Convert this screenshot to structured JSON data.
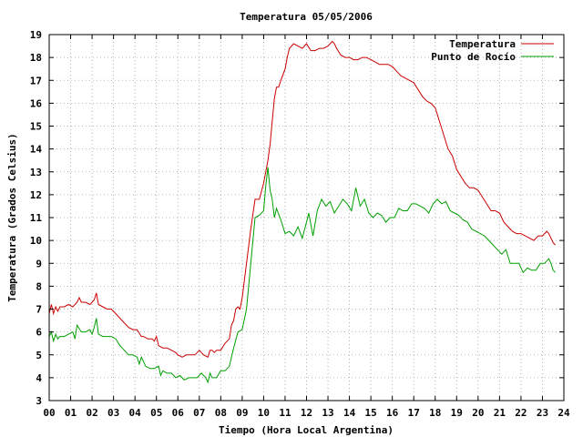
{
  "chart_data": {
    "type": "line",
    "title": "Temperatura 05/05/2006",
    "xlabel": "Tiempo (Hora Local Argentina)",
    "ylabel": "Temperatura (Grados Celsius)",
    "xlim": [
      0,
      24
    ],
    "ylim": [
      3,
      19
    ],
    "x_ticks": [
      "00",
      "01",
      "02",
      "03",
      "04",
      "05",
      "06",
      "07",
      "08",
      "09",
      "10",
      "11",
      "12",
      "13",
      "14",
      "15",
      "16",
      "17",
      "18",
      "19",
      "20",
      "21",
      "22",
      "23",
      "24"
    ],
    "y_ticks": [
      "3",
      "4",
      "5",
      "6",
      "7",
      "8",
      "9",
      "10",
      "11",
      "12",
      "13",
      "14",
      "15",
      "16",
      "17",
      "18",
      "19"
    ],
    "grid": true,
    "legend_position": "top-right",
    "series": [
      {
        "name": "Temperatura",
        "color": "#cc0000",
        "x": [
          0,
          0.1,
          0.2,
          0.3,
          0.4,
          0.5,
          0.7,
          0.9,
          1.1,
          1.3,
          1.4,
          1.5,
          1.7,
          1.9,
          2.0,
          2.1,
          2.2,
          2.3,
          2.5,
          2.7,
          2.9,
          3.1,
          3.3,
          3.5,
          3.7,
          3.9,
          4.1,
          4.3,
          4.4,
          4.6,
          4.8,
          4.9,
          5.0,
          5.1,
          5.3,
          5.5,
          5.7,
          5.9,
          6.0,
          6.2,
          6.4,
          6.6,
          6.8,
          7.0,
          7.2,
          7.4,
          7.5,
          7.6,
          7.7,
          7.8,
          8.0,
          8.2,
          8.4,
          8.5,
          8.6,
          8.7,
          8.8,
          8.9,
          9.0,
          9.2,
          9.4,
          9.6,
          9.8,
          10.0,
          10.2,
          10.3,
          10.4,
          10.5,
          10.6,
          10.7,
          10.8,
          11.0,
          11.1,
          11.2,
          11.4,
          11.6,
          11.8,
          12.0,
          12.2,
          12.4,
          12.6,
          12.8,
          13.0,
          13.2,
          13.3,
          13.4,
          13.6,
          13.8,
          14.0,
          14.2,
          14.4,
          14.6,
          14.8,
          15.0,
          15.2,
          15.4,
          15.6,
          15.8,
          16.0,
          16.2,
          16.4,
          16.6,
          16.8,
          17.0,
          17.2,
          17.4,
          17.6,
          17.8,
          18.0,
          18.2,
          18.4,
          18.6,
          18.8,
          19.0,
          19.2,
          19.4,
          19.6,
          19.8,
          20.0,
          20.2,
          20.4,
          20.6,
          20.8,
          21.0,
          21.2,
          21.4,
          21.6,
          21.8,
          22.0,
          22.2,
          22.4,
          22.6,
          22.8,
          23.0,
          23.2,
          23.3,
          23.4,
          23.5,
          23.6
        ],
        "values": [
          6.8,
          7.2,
          6.8,
          7.1,
          6.9,
          7.1,
          7.1,
          7.2,
          7.1,
          7.3,
          7.5,
          7.3,
          7.3,
          7.2,
          7.3,
          7.4,
          7.7,
          7.2,
          7.1,
          7.0,
          7.0,
          6.8,
          6.6,
          6.4,
          6.2,
          6.1,
          6.1,
          5.8,
          5.8,
          5.7,
          5.7,
          5.6,
          5.8,
          5.4,
          5.3,
          5.3,
          5.2,
          5.1,
          5.0,
          4.9,
          5.0,
          5.0,
          5.0,
          5.2,
          5.0,
          4.9,
          5.2,
          5.2,
          5.1,
          5.2,
          5.2,
          5.5,
          5.7,
          6.3,
          6.5,
          7.0,
          7.1,
          7.0,
          7.5,
          9.0,
          10.5,
          11.8,
          11.8,
          12.5,
          13.5,
          14.2,
          15.2,
          16.2,
          16.7,
          16.7,
          17.0,
          17.5,
          18.0,
          18.4,
          18.6,
          18.5,
          18.4,
          18.6,
          18.3,
          18.3,
          18.4,
          18.4,
          18.5,
          18.7,
          18.6,
          18.4,
          18.1,
          18.0,
          18.0,
          17.9,
          17.9,
          18.0,
          18.0,
          17.9,
          17.8,
          17.7,
          17.7,
          17.7,
          17.6,
          17.4,
          17.2,
          17.1,
          17.0,
          16.9,
          16.6,
          16.3,
          16.1,
          16.0,
          15.8,
          15.2,
          14.6,
          14.0,
          13.7,
          13.1,
          12.8,
          12.5,
          12.3,
          12.3,
          12.2,
          11.9,
          11.6,
          11.3,
          11.3,
          11.2,
          10.8,
          10.6,
          10.4,
          10.3,
          10.3,
          10.2,
          10.1,
          10.0,
          10.2,
          10.2,
          10.4,
          10.3,
          10.1,
          9.9,
          9.8
        ]
      },
      {
        "name": "Punto de Rocío",
        "color": "#00a000",
        "x": [
          0,
          0.1,
          0.2,
          0.3,
          0.4,
          0.5,
          0.7,
          0.9,
          1.1,
          1.2,
          1.3,
          1.5,
          1.7,
          1.9,
          2.0,
          2.1,
          2.2,
          2.3,
          2.5,
          2.7,
          2.9,
          3.1,
          3.3,
          3.5,
          3.7,
          3.9,
          4.1,
          4.2,
          4.3,
          4.5,
          4.7,
          4.9,
          5.1,
          5.2,
          5.3,
          5.5,
          5.7,
          5.9,
          6.1,
          6.3,
          6.5,
          6.7,
          6.9,
          7.1,
          7.3,
          7.4,
          7.5,
          7.6,
          7.8,
          8.0,
          8.2,
          8.4,
          8.5,
          8.6,
          8.8,
          9.0,
          9.2,
          9.4,
          9.6,
          9.8,
          10.0,
          10.1,
          10.2,
          10.3,
          10.4,
          10.5,
          10.6,
          10.8,
          11.0,
          11.2,
          11.4,
          11.6,
          11.8,
          12.0,
          12.1,
          12.3,
          12.5,
          12.7,
          12.9,
          13.1,
          13.3,
          13.5,
          13.7,
          13.9,
          14.1,
          14.3,
          14.5,
          14.7,
          14.9,
          15.1,
          15.3,
          15.5,
          15.7,
          15.9,
          16.1,
          16.3,
          16.5,
          16.7,
          16.9,
          17.1,
          17.3,
          17.5,
          17.7,
          17.9,
          18.1,
          18.3,
          18.5,
          18.7,
          18.9,
          19.1,
          19.3,
          19.5,
          19.7,
          19.9,
          20.1,
          20.3,
          20.5,
          20.7,
          20.9,
          21.1,
          21.3,
          21.5,
          21.7,
          21.9,
          22.1,
          22.3,
          22.5,
          22.7,
          22.9,
          23.1,
          23.3,
          23.4,
          23.5,
          23.6
        ],
        "values": [
          5.8,
          6.0,
          5.6,
          5.9,
          5.7,
          5.8,
          5.8,
          5.9,
          6.0,
          5.7,
          6.3,
          6.0,
          6.0,
          6.1,
          5.9,
          6.2,
          6.6,
          5.9,
          5.8,
          5.8,
          5.8,
          5.7,
          5.4,
          5.2,
          5.0,
          5.0,
          4.9,
          4.6,
          4.9,
          4.5,
          4.4,
          4.4,
          4.5,
          4.1,
          4.3,
          4.2,
          4.2,
          4.0,
          4.1,
          3.9,
          4.0,
          4.0,
          4.0,
          4.2,
          4.0,
          3.8,
          4.2,
          4.0,
          4.0,
          4.3,
          4.3,
          4.5,
          4.9,
          5.3,
          6.0,
          6.1,
          7.0,
          9.0,
          11.0,
          11.1,
          11.3,
          12.4,
          13.2,
          12.2,
          11.8,
          11.0,
          11.4,
          10.9,
          10.3,
          10.4,
          10.2,
          10.6,
          10.1,
          10.8,
          11.2,
          10.2,
          11.3,
          11.8,
          11.5,
          11.7,
          11.2,
          11.5,
          11.8,
          11.6,
          11.3,
          12.3,
          11.5,
          11.8,
          11.2,
          11.0,
          11.2,
          11.1,
          10.8,
          11.0,
          11.0,
          11.4,
          11.3,
          11.3,
          11.6,
          11.6,
          11.5,
          11.4,
          11.2,
          11.6,
          11.8,
          11.6,
          11.7,
          11.3,
          11.2,
          11.1,
          10.9,
          10.8,
          10.5,
          10.4,
          10.3,
          10.2,
          10.0,
          9.8,
          9.6,
          9.4,
          9.6,
          9.0,
          9.0,
          9.0,
          8.6,
          8.8,
          8.7,
          8.7,
          9.0,
          9.0,
          9.2,
          9.0,
          8.7,
          8.6
        ]
      }
    ]
  }
}
